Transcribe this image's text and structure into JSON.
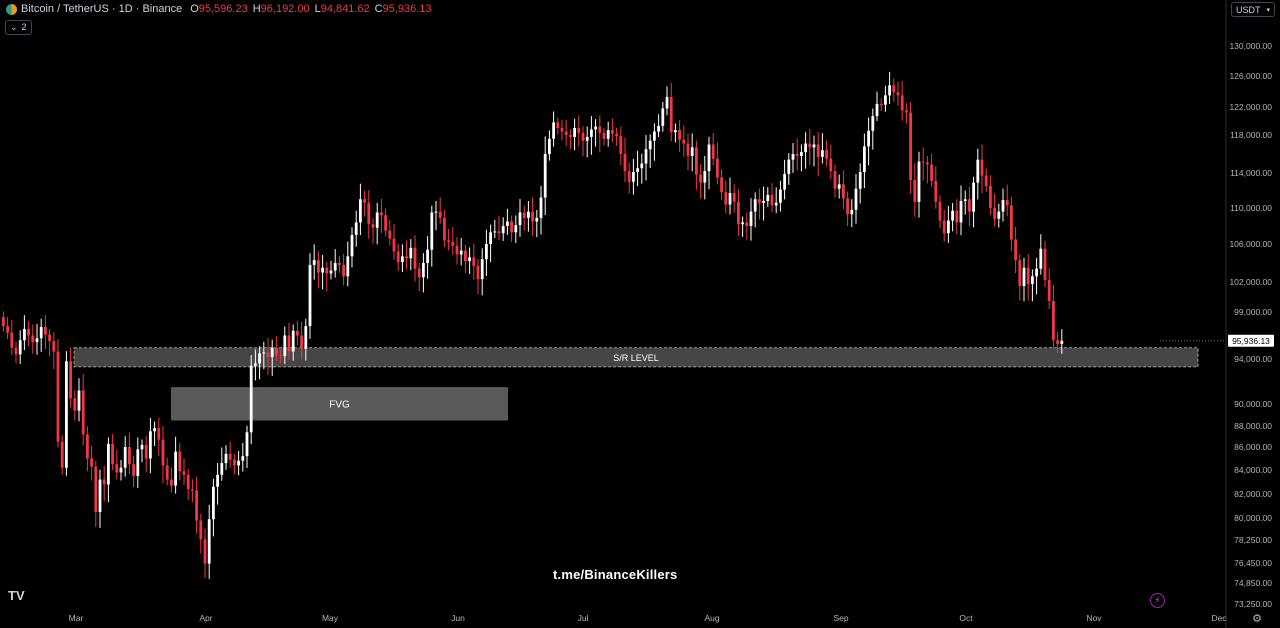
{
  "header": {
    "symbol": "Bitcoin / TetherUS · 1D · Binance",
    "open_label": "O",
    "open": "95,596.23",
    "high_label": "H",
    "high": "96,192.00",
    "low_label": "L",
    "low": "94,841.62",
    "close_label": "C",
    "close": "95,936.13",
    "indicators_count": "2"
  },
  "currency": "USDT",
  "watermark": "t.me/BinanceKillers",
  "colors": {
    "up": "#ffffff",
    "down": "#f23645",
    "background": "#000000",
    "zone": "#808080",
    "price_tag": "#ffffff"
  },
  "chart_data": {
    "type": "candlestick",
    "x_labels": [
      "Mar",
      "Apr",
      "May",
      "Jun",
      "Jul",
      "Aug",
      "Sep",
      "Oct",
      "Nov",
      "Dec"
    ],
    "y_ticks": [
      130000,
      126000,
      122000,
      118000,
      114000,
      110000,
      106000,
      102000,
      99000,
      94000,
      90000,
      88000,
      86000,
      84000,
      82000,
      80000,
      78250,
      76450,
      74850,
      73250
    ],
    "y_tick_labels": [
      "130,000.00",
      "126,000.00",
      "122,000.00",
      "118,000.00",
      "114,000.00",
      "110,000.00",
      "106,000.00",
      "102,000.00",
      "99,000.00",
      "94,000.00",
      "90,000.00",
      "88,000.00",
      "86,000.00",
      "84,000.00",
      "82,000.00",
      "80,000.00",
      "78,250.00",
      "76,450.00",
      "74,850.00",
      "73,250.00"
    ],
    "last_price": 95936.13,
    "last_price_label": "95,936.13",
    "zones": [
      {
        "label": "S/R LEVEL",
        "price_top": 95200,
        "price_bottom": 93300,
        "start": "Mar",
        "end": "Nov 25"
      },
      {
        "label": "FVG",
        "price_top": 91500,
        "price_bottom": 88500,
        "start": "Mar 24",
        "end": "Jun 10"
      }
    ],
    "closes": [
      97500,
      96800,
      95200,
      94500,
      96000,
      97200,
      96500,
      95800,
      96200,
      97400,
      96600,
      95900,
      94800,
      86500,
      84200,
      93800,
      90500,
      89400,
      91200,
      87200,
      85000,
      84300,
      80500,
      83200,
      82800,
      86300,
      84500,
      83800,
      84200,
      86000,
      84500,
      83500,
      85800,
      86200,
      85000,
      87500,
      87800,
      86700,
      84400,
      83200,
      82700,
      85600,
      83900,
      83600,
      82400,
      82300,
      79800,
      78300,
      76400,
      79900,
      82600,
      83600,
      84600,
      85400,
      84900,
      84400,
      84800,
      85200,
      87400,
      93400,
      93600,
      94600,
      94700,
      94200,
      95200,
      94400,
      94300,
      96500,
      94800,
      97000,
      96500,
      95100,
      97500,
      103800,
      104300,
      103000,
      103500,
      102900,
      103200,
      104000,
      103800,
      102600,
      104700,
      107000,
      108400,
      111000,
      110600,
      108200,
      107800,
      109500,
      109200,
      107500,
      106600,
      105200,
      104100,
      104700,
      104500,
      105600,
      103400,
      102500,
      104000,
      105400,
      109500,
      109600,
      108900,
      106400,
      106200,
      105800,
      104900,
      105300,
      104200,
      104600,
      103700,
      102300,
      104400,
      106000,
      107300,
      107400,
      107200,
      108000,
      108500,
      107300,
      108100,
      109500,
      108900,
      109600,
      108500,
      108900,
      111200,
      116000,
      117600,
      119800,
      119000,
      118500,
      118000,
      117800,
      119000,
      118300,
      117400,
      117800,
      118800,
      119200,
      118300,
      117600,
      118700,
      118200,
      117900,
      116000,
      114200,
      113000,
      114100,
      114500,
      115000,
      116500,
      117400,
      118500,
      119300,
      121800,
      123300,
      118400,
      118700,
      117500,
      117100,
      115800,
      116700,
      113800,
      112900,
      114200,
      117000,
      115500,
      113500,
      111800,
      110400,
      111700,
      110700,
      108200,
      108400,
      108000,
      109600,
      111000,
      110600,
      110800,
      111500,
      110300,
      110600,
      112100,
      113900,
      115400,
      116000,
      115800,
      116200,
      117100,
      116700,
      117000,
      115700,
      116400,
      115500,
      114200,
      112200,
      112700,
      111100,
      109300,
      109800,
      112200,
      114100,
      116800,
      118600,
      120700,
      122400,
      122300,
      123500,
      124800,
      123900,
      123500,
      121500,
      121200,
      113200,
      110700,
      115200,
      115100,
      114900,
      113100,
      110700,
      108600,
      107200,
      108600,
      109700,
      108400,
      110800,
      111000,
      109600,
      112900,
      115400,
      113700,
      112500,
      110000,
      108800,
      109600,
      110900,
      110300,
      106500,
      104300,
      101600,
      103500,
      101800,
      102600,
      103400,
      105500,
      102200,
      100100,
      96000,
      95600,
      95936
    ]
  }
}
